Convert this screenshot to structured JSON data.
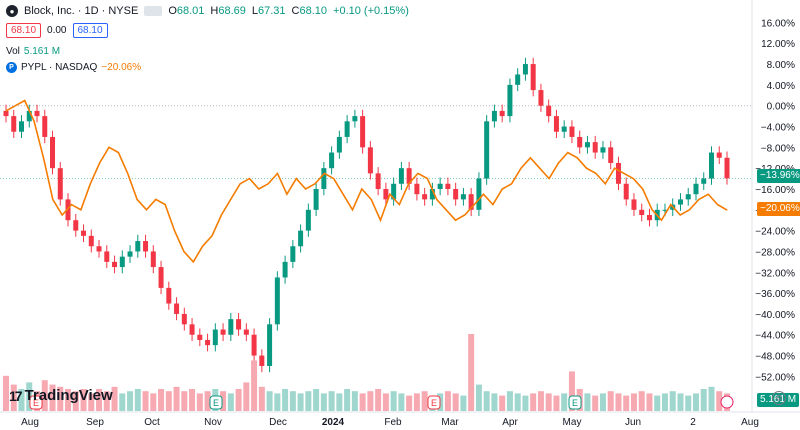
{
  "header": {
    "symbol_name": "Block, Inc. · 1D · NYSE",
    "ohlc": [
      {
        "label": "O",
        "value": "68.01"
      },
      {
        "label": "H",
        "value": "68.69"
      },
      {
        "label": "L",
        "value": "67.31"
      },
      {
        "label": "C",
        "value": "68.10"
      }
    ],
    "change": "+0.10 (+0.15%)",
    "bid": "68.10",
    "spread": "0.00",
    "ask": "68.10"
  },
  "volume": {
    "label": "Vol",
    "value": "5.161 M"
  },
  "compare": {
    "symbol": "PYPL · NASDAQ",
    "change": "−20.06%"
  },
  "branding": {
    "logo_text": "TradingView"
  },
  "price_tags": {
    "block": "−13.96%",
    "pypl": "−20.06%",
    "volume": "5.161 M"
  },
  "colors": {
    "up": "#089981",
    "down": "#f23645",
    "compare": "#f57c00",
    "vol_up": "#9fd6ce",
    "vol_down": "#f7a9b1"
  },
  "chart_data": {
    "type": "line",
    "percent_scale": true,
    "y_ticks": [
      "16.00%",
      "12.00%",
      "8.00%",
      "4.00%",
      "0.00%",
      "−4.00%",
      "−8.00%",
      "−12.00%",
      "−16.00%",
      "−20.00%",
      "−24.00%",
      "−28.00%",
      "−32.00%",
      "−36.00%",
      "−40.00%",
      "−44.00%",
      "−48.00%",
      "−52.00%"
    ],
    "ylim": [
      -55,
      18
    ],
    "x_ticks": [
      "Aug",
      "Sep",
      "Oct",
      "Nov",
      "Dec",
      "2024",
      "Feb",
      "Mar",
      "Apr",
      "May",
      "Jun",
      "2",
      "Aug"
    ],
    "series": [
      {
        "name": "Block, Inc.",
        "kind": "candles",
        "close": [
          -2,
          -5,
          -3,
          -1,
          -2,
          -6,
          -12,
          -18,
          -22,
          -24,
          -25,
          -27,
          -28,
          -30,
          -31,
          -29,
          -28,
          -26,
          -28,
          -31,
          -35,
          -38,
          -40,
          -42,
          -44,
          -45,
          -46,
          -43,
          -44,
          -41,
          -43,
          -44,
          -48,
          -50,
          -42,
          -33,
          -30,
          -27,
          -24,
          -20,
          -16,
          -12,
          -9,
          -6,
          -3,
          -2,
          -8,
          -13,
          -16,
          -18,
          -15,
          -12,
          -15,
          -17,
          -18,
          -16,
          -15,
          -16,
          -18,
          -17,
          -20,
          -14,
          -3,
          -1,
          -2,
          4,
          6,
          8,
          3,
          0,
          -2,
          -5,
          -4,
          -6,
          -8,
          -7,
          -9,
          -8,
          -11,
          -15,
          -18,
          -20,
          -21,
          -22,
          -20,
          -20,
          -19,
          -18,
          -17,
          -15,
          -14,
          -9,
          -10,
          -13.96
        ],
        "volume": [
          1.6,
          1.2,
          1.0,
          1.3,
          0.9,
          1.4,
          1.2,
          1.1,
          1.0,
          0.9,
          1.0,
          0.8,
          1.0,
          0.9,
          1.1,
          0.8,
          0.9,
          1.0,
          0.9,
          0.8,
          1.0,
          0.9,
          1.1,
          0.9,
          1.0,
          0.8,
          0.9,
          1.0,
          0.9,
          0.8,
          1.0,
          1.3,
          2.3,
          1.1,
          0.9,
          0.8,
          1.0,
          0.9,
          0.8,
          0.9,
          1.0,
          0.8,
          0.9,
          0.8,
          1.0,
          0.9,
          0.8,
          0.9,
          1.0,
          0.8,
          0.9,
          0.8,
          0.7,
          0.8,
          0.9,
          0.7,
          0.8,
          0.9,
          0.8,
          0.7,
          3.5,
          1.2,
          0.9,
          0.8,
          0.7,
          0.9,
          0.8,
          0.7,
          0.8,
          0.9,
          0.8,
          0.7,
          0.8,
          1.8,
          1.0,
          0.8,
          0.7,
          0.8,
          0.9,
          0.8,
          0.7,
          0.8,
          0.9,
          0.8,
          0.7,
          0.8,
          0.9,
          0.8,
          0.7,
          0.8,
          1.0,
          1.1,
          0.9,
          0.8
        ]
      },
      {
        "name": "PYPL",
        "kind": "line",
        "values": [
          -1,
          0,
          1,
          -3,
          -10,
          -18,
          -21,
          -19,
          -20,
          -15,
          -11,
          -8,
          -9,
          -13,
          -18,
          -20,
          -18,
          -19,
          -24,
          -28,
          -30,
          -27,
          -25,
          -21,
          -18,
          -15,
          -14,
          -16,
          -15,
          -13,
          -17,
          -14,
          -16,
          -15,
          -13,
          -14,
          -17,
          -20,
          -16,
          -18,
          -22,
          -17,
          -19,
          -15,
          -13,
          -14,
          -18,
          -20,
          -22,
          -21,
          -19,
          -17,
          -19,
          -16,
          -15,
          -12,
          -10,
          -12,
          -14,
          -11,
          -9,
          -10,
          -12,
          -13,
          -15,
          -12,
          -13,
          -14,
          -16,
          -20,
          -22,
          -19,
          -21,
          -20,
          -18,
          -17,
          -19,
          -20.06
        ]
      }
    ]
  }
}
